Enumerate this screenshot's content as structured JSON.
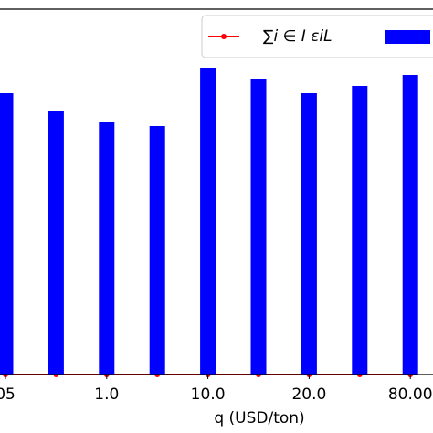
{
  "chart_data": {
    "type": "bar",
    "categories": [
      "05",
      null,
      "1.0",
      null,
      "10.0",
      null,
      "20.0",
      null,
      "80.00"
    ],
    "x_label": "q (USD/ton)",
    "ylim": [
      0,
      1
    ],
    "series": [
      {
        "name": "∑i ∈ I εiL",
        "color": "#ff0000",
        "type": "line",
        "values": [
          0,
          0,
          0,
          0,
          0,
          0,
          0,
          0,
          0
        ]
      },
      {
        "color": "#0000ff",
        "type": "bar",
        "values": [
          0.77,
          0.72,
          0.69,
          0.68,
          0.84,
          0.81,
          0.77,
          0.79,
          0.82
        ]
      }
    ]
  }
}
